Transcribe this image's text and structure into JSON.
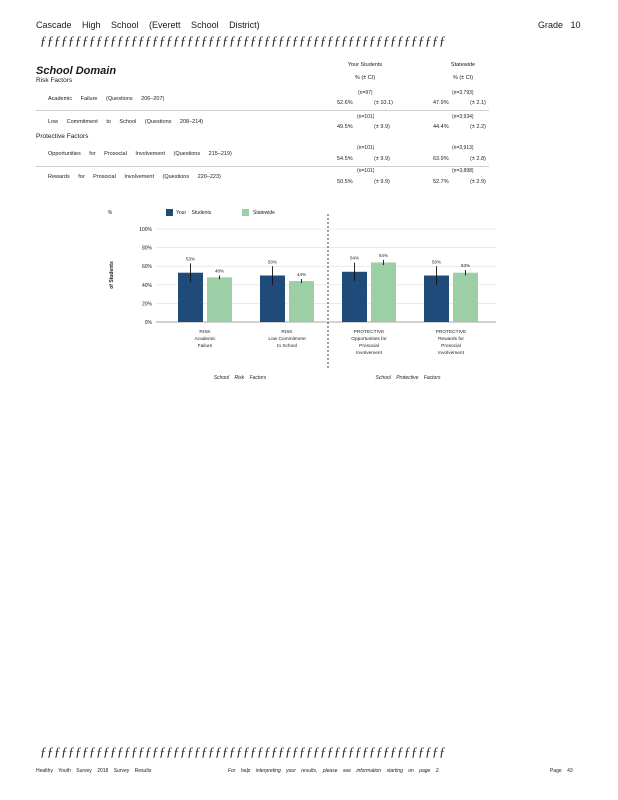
{
  "header": {
    "school": "Cascade High School (Everett School District)",
    "grade": "Grade 10"
  },
  "divider": "ƒƒƒƒƒƒƒƒƒƒƒƒƒƒƒƒƒƒƒƒƒƒƒƒƒƒƒƒƒƒƒƒƒƒƒƒƒƒƒƒƒƒƒƒƒƒƒƒƒƒƒƒƒƒƒƒƒƒ",
  "domain_title": "School Domain",
  "columns": {
    "your_students": "Your Students",
    "your_pct": "% (± CI)",
    "statewide": "Statewide",
    "state_pct": "% (± CI)"
  },
  "risk_heading": "Risk Factors",
  "protective_heading": "Protective Factors",
  "rows": [
    {
      "label": "Academic Failure (Questions 206–207)",
      "your_n": "(n=97)",
      "your_pct": "52.6%",
      "your_ci": "(± 10.1)",
      "state_n": "(n=3,793)",
      "state_pct": "47.9%",
      "state_ci": "(± 2.1)"
    },
    {
      "label": "Low Commitment to School (Questions 208–214)",
      "your_n": "(n=101)",
      "your_pct": "49.5%",
      "your_ci": "(± 9.9)",
      "state_n": "(n=3,934)",
      "state_pct": "44.4%",
      "state_ci": "(± 2.2)"
    },
    {
      "label": "Opportunities for Prosocial Involvement (Questions 215–219)",
      "your_n": "(n=101)",
      "your_pct": "54.5%",
      "your_ci": "(± 9.9)",
      "state_n": "(n=3,913)",
      "state_pct": "63.9%",
      "state_ci": "(± 2.8)"
    },
    {
      "label": "Rewards for Prosocial Involvement (Questions 220–223)",
      "your_n": "(n=101)",
      "your_pct": "50.5%",
      "your_ci": "(± 9.9)",
      "state_n": "(n=3,898)",
      "state_pct": "52.7%",
      "state_ci": "(± 2.9)"
    }
  ],
  "chart_data": {
    "type": "bar",
    "ylabel_top": "%",
    "ylabel": "of Students",
    "ylim": [
      0,
      100
    ],
    "yticks": [
      "0%",
      "20%",
      "40%",
      "60%",
      "80%",
      "100%"
    ],
    "categories": [
      [
        "RISK",
        "Academic",
        "Failure"
      ],
      [
        "RISK",
        "Low Commitment",
        "to School"
      ],
      [
        "PROTECTIVE",
        "Opportunities for",
        "Prosocial",
        "Involvement"
      ],
      [
        "PROTECTIVE",
        "Rewards for",
        "Prosocial",
        "Involvement"
      ]
    ],
    "series": [
      {
        "name": "Your Students",
        "color": "#1f4b7a",
        "values": [
          53,
          50,
          54,
          50
        ],
        "labels": [
          "53%",
          "50%",
          "54%",
          "50%"
        ],
        "ci": [
          10.1,
          9.9,
          9.9,
          9.9
        ]
      },
      {
        "name": "Statewide",
        "color": "#9ccfa6",
        "values": [
          48,
          44,
          64,
          53
        ],
        "labels": [
          "48%",
          "44%",
          "64%",
          "53%"
        ],
        "ci": [
          2.1,
          2.2,
          2.8,
          2.9
        ]
      }
    ],
    "group_labels": [
      "School Risk Factors",
      "School Protective Factors"
    ],
    "grid": true,
    "legend": "top"
  },
  "footer": {
    "left": "Healthy Youth Survey 2018 Survey Results",
    "center": "For help interpreting your results, please see information starting on page 2.",
    "right": "Page 43"
  }
}
